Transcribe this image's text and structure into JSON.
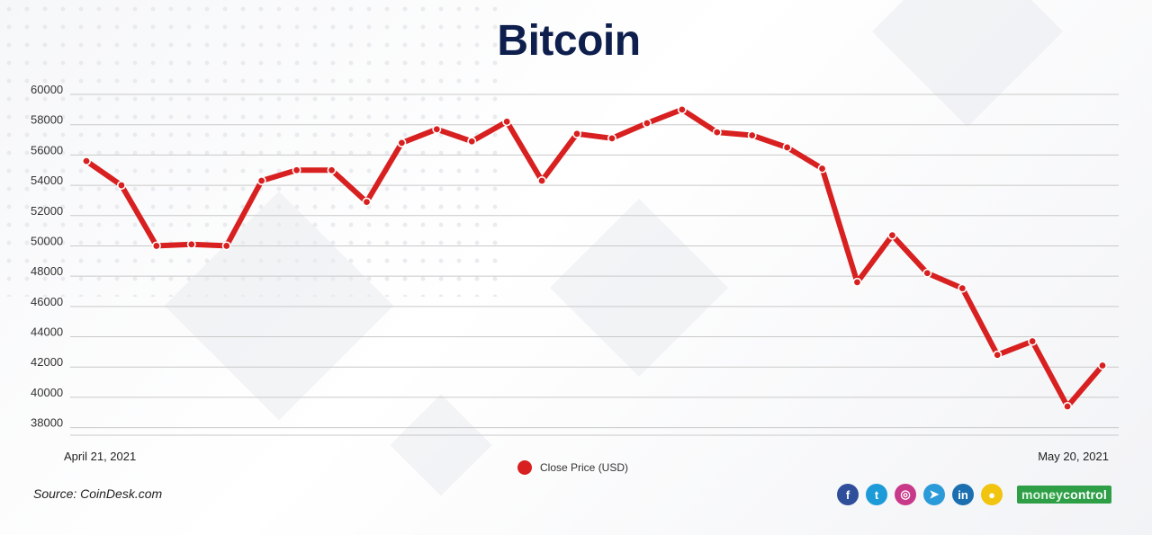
{
  "title": "Bitcoin",
  "chart_data": {
    "type": "line",
    "title": "Bitcoin",
    "xlabel": "",
    "ylabel": "",
    "ylim": [
      37500,
      60000
    ],
    "yticks": [
      60000,
      58000,
      56000,
      54000,
      52000,
      50000,
      48000,
      46000,
      44000,
      42000,
      40000,
      38000
    ],
    "x_start_label": "April 21, 2021",
    "x_end_label": "May 20, 2021",
    "grid": true,
    "legend_position": "bottom-center",
    "series": [
      {
        "name": "Close Price (USD)",
        "color": "#d7201f",
        "values": [
          55600,
          54000,
          50000,
          50100,
          50000,
          54300,
          55000,
          55000,
          52900,
          56800,
          57700,
          56900,
          58200,
          54300,
          57400,
          57100,
          58100,
          59000,
          57500,
          57300,
          56500,
          55100,
          47600,
          50700,
          48200,
          47200,
          42800,
          43700,
          39400,
          42100
        ]
      }
    ]
  },
  "footer": {
    "source": "Source: CoinDesk.com",
    "brand_part1": "money",
    "brand_part2": "control"
  },
  "social_icons": [
    {
      "name": "facebook-icon",
      "glyph": "f",
      "color": "#2f4f9a"
    },
    {
      "name": "twitter-icon",
      "glyph": "t",
      "color": "#1d9bd8"
    },
    {
      "name": "instagram-icon",
      "glyph": "◎",
      "color": "#c9398a"
    },
    {
      "name": "telegram-icon",
      "glyph": "➤",
      "color": "#2a9ad8"
    },
    {
      "name": "linkedin-icon",
      "glyph": "in",
      "color": "#1b6fb0"
    },
    {
      "name": "koo-icon",
      "glyph": "●",
      "color": "#f1c40f"
    }
  ]
}
